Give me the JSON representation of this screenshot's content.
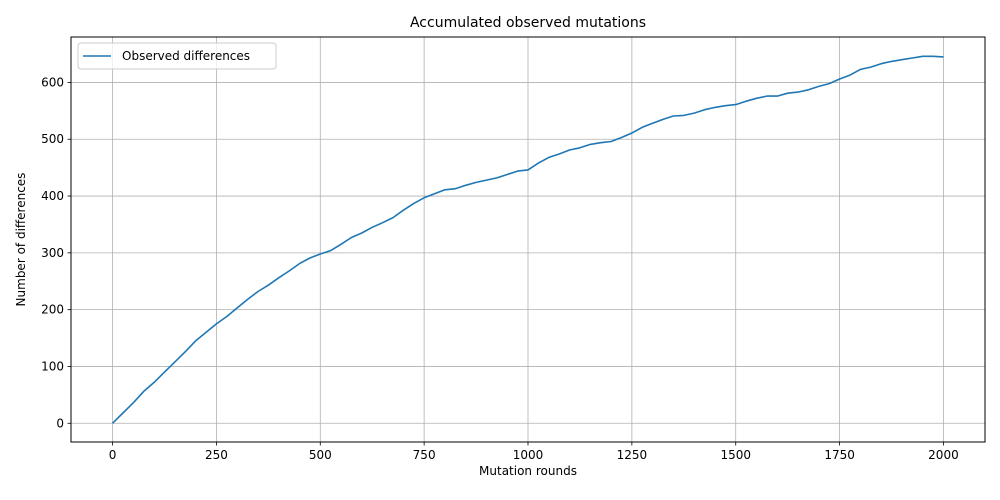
{
  "chart_data": {
    "type": "line",
    "title": "Accumulated observed mutations",
    "xlabel": "Mutation rounds",
    "ylabel": "Number of differences",
    "xlim": [
      -100,
      2100
    ],
    "ylim": [
      -33,
      680
    ],
    "xticks": [
      0,
      250,
      500,
      750,
      1000,
      1250,
      1500,
      1750,
      2000
    ],
    "xtick_labels": [
      "0",
      "250",
      "500",
      "750",
      "1000",
      "1250",
      "1500",
      "1750",
      "2000"
    ],
    "yticks": [
      0,
      100,
      200,
      300,
      400,
      500,
      600
    ],
    "ytick_labels": [
      "0",
      "100",
      "200",
      "300",
      "400",
      "500",
      "600"
    ],
    "grid": true,
    "legend_position": "top-left",
    "series": [
      {
        "name": "Observed differences",
        "color": "#1f77b4",
        "x": [
          0,
          25,
          50,
          75,
          100,
          125,
          150,
          175,
          200,
          225,
          250,
          275,
          300,
          325,
          350,
          375,
          400,
          425,
          450,
          475,
          500,
          525,
          550,
          575,
          600,
          625,
          650,
          675,
          700,
          725,
          750,
          775,
          800,
          825,
          850,
          875,
          900,
          925,
          950,
          975,
          1000,
          1025,
          1050,
          1075,
          1100,
          1125,
          1150,
          1175,
          1200,
          1225,
          1250,
          1275,
          1300,
          1325,
          1350,
          1375,
          1400,
          1425,
          1450,
          1475,
          1500,
          1525,
          1550,
          1575,
          1600,
          1625,
          1650,
          1675,
          1700,
          1725,
          1750,
          1775,
          1800,
          1825,
          1850,
          1875,
          1900,
          1925,
          1950,
          1975,
          2000
        ],
        "y": [
          0,
          18,
          36,
          56,
          72,
          90,
          108,
          126,
          145,
          160,
          175,
          188,
          203,
          218,
          232,
          243,
          256,
          268,
          281,
          291,
          298,
          304,
          315,
          327,
          335,
          345,
          353,
          362,
          375,
          387,
          397,
          404,
          411,
          413,
          419,
          424,
          428,
          432,
          438,
          444,
          446,
          458,
          468,
          474,
          481,
          485,
          491,
          494,
          496,
          503,
          511,
          521,
          528,
          535,
          541,
          542,
          546,
          552,
          556,
          559,
          561,
          567,
          572,
          576,
          576,
          581,
          583,
          587,
          593,
          598,
          606,
          613,
          623,
          627,
          633,
          637,
          640,
          643,
          646,
          646,
          645
        ]
      }
    ]
  }
}
